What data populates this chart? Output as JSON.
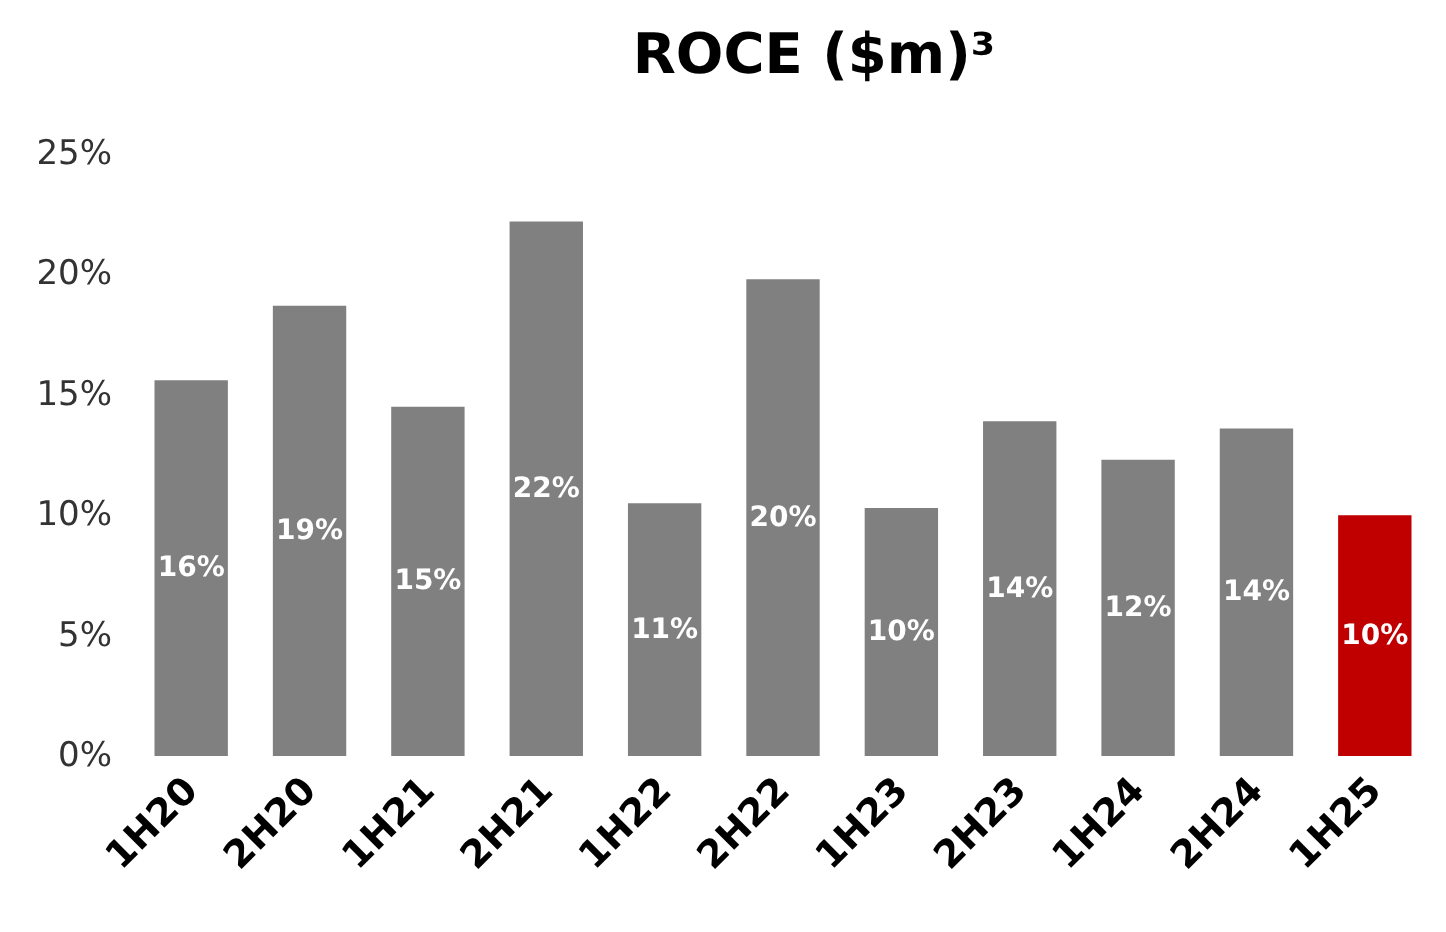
{
  "chart_data": {
    "type": "bar",
    "title": "ROCE ($m)³",
    "categories": [
      "1H20",
      "2H20",
      "1H21",
      "2H21",
      "1H22",
      "2H22",
      "1H23",
      "2H23",
      "1H24",
      "2H24",
      "1H25"
    ],
    "values": [
      15.6,
      18.7,
      14.5,
      22.2,
      10.5,
      19.8,
      10.3,
      13.9,
      12.3,
      13.6,
      10.0
    ],
    "colors": [
      "#808080",
      "#808080",
      "#808080",
      "#808080",
      "#808080",
      "#808080",
      "#808080",
      "#808080",
      "#808080",
      "#808080",
      "#c00000"
    ],
    "value_labels": [
      "16%",
      "19%",
      "15%",
      "22%",
      "11%",
      "20%",
      "10%",
      "14%",
      "12%",
      "14%",
      "10%"
    ],
    "ylim": [
      0,
      25
    ],
    "yticks": [
      {
        "value": 0,
        "label": "0%"
      },
      {
        "value": 5,
        "label": "5%"
      },
      {
        "value": 10,
        "label": "10%"
      },
      {
        "value": 15,
        "label": "15%"
      },
      {
        "value": 20,
        "label": "20%"
      },
      {
        "value": 25,
        "label": "25%"
      }
    ]
  }
}
